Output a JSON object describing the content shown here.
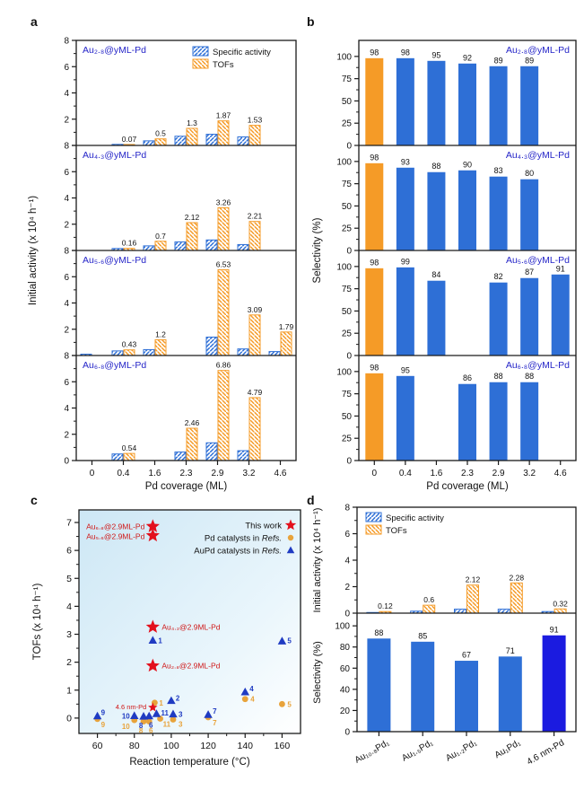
{
  "colors": {
    "blue": "#2E6FD6",
    "orange": "#F59B27",
    "darkblue": "#1B1BE0",
    "navy_label": "#2525C8",
    "red_star": "#E3101D",
    "red_label": "#D01818",
    "ref_triangle": "#1F3BC2",
    "ref_circle": "#E8A33B",
    "axis": "#1a1a1a",
    "value_label": "#111111",
    "panel_c_bg_from": "#CDE7F5",
    "panel_c_bg_to": "#FFFFFF"
  },
  "chart_data": {
    "a": {
      "letter": "a",
      "type": "bar",
      "xlabel": "Pd coverage (ML)",
      "ylabel": "Initial activity  (x 10⁴ h⁻¹)",
      "categories": [
        "0",
        "0.4",
        "1.6",
        "2.3",
        "2.9",
        "3.2",
        "4.6"
      ],
      "ylim": [
        0,
        8
      ],
      "yticks": [
        0,
        2,
        4,
        6,
        8
      ],
      "label_zero": "last",
      "legend": [
        {
          "label": "Specific activity",
          "swatch": "blue-hatch"
        },
        {
          "label": "TOFs",
          "swatch": "orange-hatch"
        }
      ],
      "subpanels": [
        {
          "title": "Au₂.₈@yML-Pd",
          "specific_activity": [
            null,
            0.08,
            0.35,
            0.7,
            0.85,
            0.65,
            null
          ],
          "tofs": [
            null,
            0.07,
            0.5,
            1.3,
            1.87,
            1.53,
            null
          ]
        },
        {
          "title": "Au₄.₃@yML-Pd",
          "specific_activity": [
            null,
            0.15,
            0.35,
            0.65,
            0.8,
            0.45,
            null
          ],
          "tofs": [
            null,
            0.16,
            0.7,
            2.12,
            3.26,
            2.21,
            null
          ]
        },
        {
          "title": "Au₅.₆@yML-Pd",
          "specific_activity": [
            0.1,
            0.35,
            0.45,
            null,
            1.4,
            0.5,
            0.3
          ],
          "tofs": [
            null,
            0.43,
            1.2,
            null,
            6.53,
            3.09,
            1.79
          ]
        },
        {
          "title": "Au₆.₈@yML-Pd",
          "specific_activity": [
            null,
            0.5,
            null,
            0.65,
            1.35,
            0.75,
            null
          ],
          "tofs": [
            null,
            0.54,
            null,
            2.46,
            6.86,
            4.79,
            null
          ]
        }
      ]
    },
    "b": {
      "letter": "b",
      "type": "bar",
      "xlabel": "Pd coverage (ML)",
      "ylabel": "Selectivity (%)",
      "categories": [
        "0",
        "0.4",
        "1.6",
        "2.3",
        "2.9",
        "3.2",
        "4.6"
      ],
      "ylim": [
        0,
        118
      ],
      "yticks": [
        0,
        25,
        50,
        75,
        100
      ],
      "label_zero": "all",
      "subpanels": [
        {
          "title": "Au₂.₈@yML-Pd",
          "values": [
            98,
            98,
            95,
            92,
            89,
            89,
            null
          ],
          "colors": [
            "orange",
            "blue",
            "blue",
            "blue",
            "blue",
            "blue",
            null
          ]
        },
        {
          "title": "Au₄.₃@yML-Pd",
          "values": [
            98,
            93,
            88,
            90,
            83,
            80,
            null
          ],
          "colors": [
            "orange",
            "blue",
            "blue",
            "blue",
            "blue",
            "blue",
            null
          ]
        },
        {
          "title": "Au₅.₆@yML-Pd",
          "values": [
            98,
            99,
            84,
            null,
            82,
            87,
            91
          ],
          "colors": [
            "orange",
            "blue",
            "blue",
            null,
            "blue",
            "blue",
            "blue"
          ]
        },
        {
          "title": "Au₆.₈@yML-Pd",
          "values": [
            98,
            95,
            null,
            86,
            88,
            88,
            null
          ],
          "colors": [
            "orange",
            "blue",
            null,
            "blue",
            "blue",
            "blue",
            null
          ]
        }
      ]
    },
    "c": {
      "letter": "c",
      "type": "scatter",
      "xlabel": "Reaction temperature (°C)",
      "ylabel": "TOFs (x 10⁴ h⁻¹)",
      "xlim": [
        50,
        170
      ],
      "xticks": [
        60,
        80,
        100,
        120,
        140,
        160
      ],
      "ylim": [
        -0.55,
        7.45
      ],
      "yticks": [
        0,
        1,
        2,
        3,
        4,
        5,
        6,
        7
      ],
      "legend": [
        {
          "label": "This work",
          "italic": "",
          "marker": "star"
        },
        {
          "label": "Pd catalysts in ",
          "italic": "Refs.",
          "marker": "circle"
        },
        {
          "label": "AuPd catalysts in ",
          "italic": "Refs.",
          "marker": "triangle"
        }
      ],
      "series": {
        "this_work": {
          "name": "This work",
          "marker": "star",
          "points": [
            {
              "x": 90,
              "y": 6.86,
              "label": "Au₆.₈@2.9ML-Pd",
              "anchor": "end",
              "dx": -9,
              "dy": 3,
              "size": 8
            },
            {
              "x": 90,
              "y": 6.53,
              "label": "Au₅.₆@2.9ML-Pd",
              "anchor": "end",
              "dx": -9,
              "dy": 4,
              "size": 8
            },
            {
              "x": 90,
              "y": 3.26,
              "label": "Au₄.₃@2.9ML-Pd",
              "anchor": "start",
              "dx": 10,
              "dy": 3,
              "size": 8
            },
            {
              "x": 90,
              "y": 1.87,
              "label": "Au₂.₈@2.9ML-Pd",
              "anchor": "start",
              "dx": 10,
              "dy": 3,
              "size": 8
            },
            {
              "x": 90,
              "y": 0.38,
              "label": "4.6 nm-Pd",
              "anchor": "end",
              "dx": -7,
              "dy": 2,
              "size": 5.5,
              "small": true
            }
          ]
        },
        "pd_refs": {
          "name": "Pd catalysts in Refs.",
          "marker": "circle",
          "points": [
            {
              "x": 91,
              "y": 0.55,
              "label": "1",
              "anchor": "start",
              "dx": 5,
              "dy": 3
            },
            {
              "x": 101,
              "y": -0.05,
              "label": "3",
              "anchor": "start",
              "dx": 6,
              "dy": 8
            },
            {
              "x": 140,
              "y": 0.68,
              "label": "4",
              "anchor": "start",
              "dx": 6,
              "dy": 3
            },
            {
              "x": 160,
              "y": 0.5,
              "label": "5",
              "anchor": "start",
              "dx": 6,
              "dy": 3
            },
            {
              "x": 88,
              "y": -0.12,
              "label": "6",
              "anchor": "middle",
              "dx": 2,
              "dy": 13
            },
            {
              "x": 120,
              "y": 0.03,
              "label": "7",
              "anchor": "start",
              "dx": 5,
              "dy": 9
            },
            {
              "x": 85,
              "y": -0.12,
              "label": "8",
              "anchor": "middle",
              "dx": -3,
              "dy": 13
            },
            {
              "x": 60,
              "y": -0.03,
              "label": "9",
              "anchor": "start",
              "dx": 4,
              "dy": 9
            },
            {
              "x": 80,
              "y": -0.07,
              "label": "10",
              "anchor": "end",
              "dx": -5,
              "dy": 10
            },
            {
              "x": 94,
              "y": -0.02,
              "label": "11",
              "anchor": "start",
              "dx": 3,
              "dy": 9
            }
          ]
        },
        "aupd_refs": {
          "name": "AuPd catalysts in Refs.",
          "marker": "triangle",
          "points": [
            {
              "x": 90,
              "y": 2.78,
              "label": "1",
              "anchor": "start",
              "dx": 6,
              "dy": 3
            },
            {
              "x": 100,
              "y": 0.62,
              "label": "2",
              "anchor": "start",
              "dx": 5,
              "dy": 0
            },
            {
              "x": 101,
              "y": 0.14,
              "label": "3",
              "anchor": "start",
              "dx": 6,
              "dy": 3
            },
            {
              "x": 140,
              "y": 0.93,
              "label": "4",
              "anchor": "start",
              "dx": 5,
              "dy": -1
            },
            {
              "x": 160,
              "y": 2.75,
              "label": "5",
              "anchor": "start",
              "dx": 6,
              "dy": 2
            },
            {
              "x": 88,
              "y": 0.07,
              "label": "6",
              "anchor": "middle",
              "dx": 2,
              "dy": 13
            },
            {
              "x": 120,
              "y": 0.12,
              "label": "7",
              "anchor": "start",
              "dx": 5,
              "dy": -1
            },
            {
              "x": 85,
              "y": 0.06,
              "label": "8",
              "anchor": "middle",
              "dx": -3,
              "dy": 13
            },
            {
              "x": 60,
              "y": 0.07,
              "label": "9",
              "anchor": "start",
              "dx": 4,
              "dy": -1
            },
            {
              "x": 80,
              "y": 0.08,
              "label": "10",
              "anchor": "end",
              "dx": -5,
              "dy": 3
            },
            {
              "x": 92,
              "y": 0.15,
              "label": "11",
              "anchor": "start",
              "dx": 5,
              "dy": 2
            }
          ]
        }
      }
    },
    "d": {
      "letter": "d",
      "type": "bar",
      "categories": [
        "Au₁₀.₈Pd₁",
        "Au₁.₅Pd₁",
        "Au₁.₂Pd₁",
        "Au₁Pd₁",
        "4.6 nm-Pd"
      ],
      "legend": [
        {
          "label": "Specific activity",
          "swatch": "blue-hatch"
        },
        {
          "label": "TOFs",
          "swatch": "orange-hatch"
        }
      ],
      "activity": {
        "ylabel": "Initial activity  (x 10⁴ h⁻¹)",
        "ylim": [
          0,
          8
        ],
        "yticks": [
          0,
          2,
          4,
          6,
          8
        ],
        "specific_activity": [
          0.05,
          0.15,
          0.3,
          0.3,
          0.12
        ],
        "tofs": [
          0.12,
          0.6,
          2.12,
          2.28,
          0.32
        ]
      },
      "selectivity": {
        "ylabel": "Selectivity (%)",
        "ylim": [
          0,
          112
        ],
        "yticks": [
          0,
          20,
          40,
          60,
          80,
          100
        ],
        "values": [
          88,
          85,
          67,
          71,
          91
        ],
        "colors": [
          "blue",
          "blue",
          "blue",
          "blue",
          "darkblue"
        ]
      }
    }
  }
}
